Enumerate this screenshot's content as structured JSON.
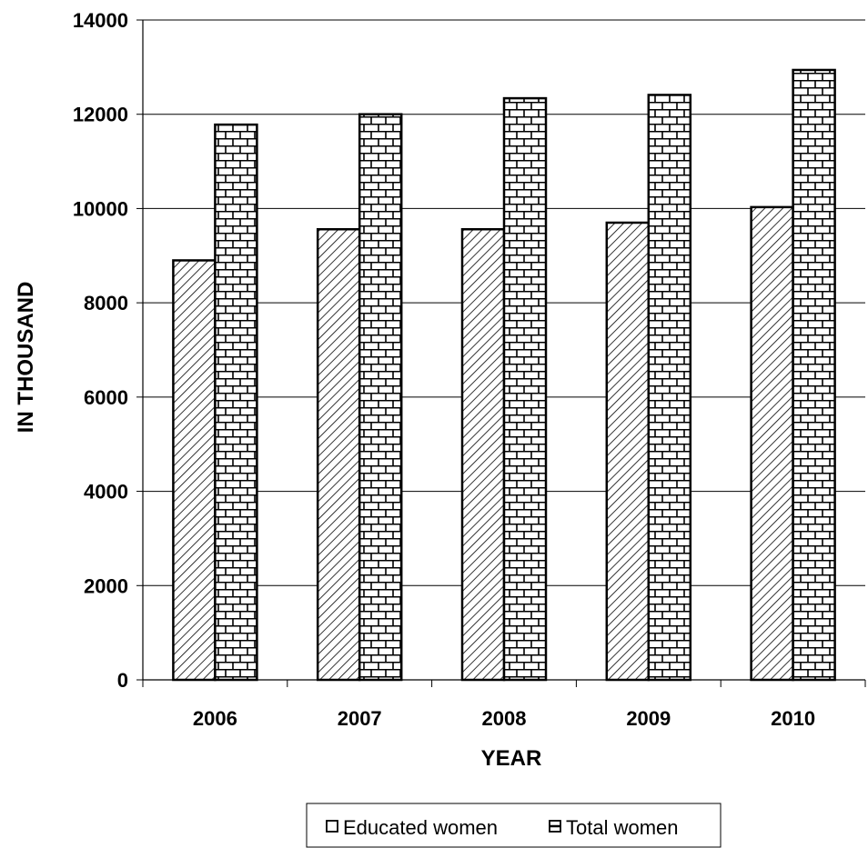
{
  "chart_data": {
    "type": "bar",
    "title": "",
    "xlabel": "YEAR",
    "ylabel": "IN THOUSAND",
    "categories": [
      "2006",
      "2007",
      "2008",
      "2009",
      "2010"
    ],
    "series": [
      {
        "name": "Educated women",
        "values": [
          8900,
          9560,
          9560,
          9700,
          10030
        ],
        "pattern": "diagonal-hatch",
        "color": "#000000"
      },
      {
        "name": "Total women",
        "values": [
          11780,
          12000,
          12340,
          12410,
          12940
        ],
        "pattern": "brick",
        "color": "#000000"
      }
    ],
    "ylim": [
      0,
      14000
    ],
    "yticks": [
      "0",
      "2000",
      "4000",
      "6000",
      "8000",
      "10000",
      "12000",
      "14000"
    ],
    "grid": true,
    "legend_position": "bottom"
  }
}
